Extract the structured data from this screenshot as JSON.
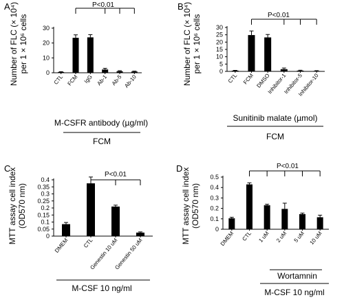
{
  "chart_data": [
    {
      "type": "bar",
      "panel": "A",
      "ylabel": [
        "Number of FLC (× 10⁴)",
        "per 1 × 10⁶ cells"
      ],
      "ylim": [
        0,
        30
      ],
      "ticks": [
        0,
        10,
        20,
        30
      ],
      "categories": [
        "CTL",
        "FCM",
        "IgG",
        "Ab-1",
        "Ab-5",
        "Ab-10"
      ],
      "values": [
        0.5,
        23.5,
        23.8,
        2.2,
        1.0,
        0.8
      ],
      "errors": [
        0.2,
        2.0,
        1.8,
        0.8,
        0.4,
        0.3
      ],
      "significance": {
        "label": "P<0.01",
        "from": 1,
        "to": [
          3,
          4,
          5
        ]
      },
      "annotations": [
        "M-CSFR antibody (µg/ml)",
        "FCM"
      ],
      "grid": false
    },
    {
      "type": "bar",
      "panel": "B",
      "ylabel": [
        "Number of FLC (× 10⁴)",
        "per 1 × 10⁶ cells"
      ],
      "ylim": [
        0,
        30
      ],
      "ticks": [
        0,
        5,
        10,
        15,
        20,
        25,
        30
      ],
      "categories": [
        "CTL",
        "FCM",
        "DMSO",
        "Inhibitor-1",
        "Inhibitor-5",
        "Inhibitor-10"
      ],
      "values": [
        0.5,
        24.8,
        23.2,
        1.5,
        0.5,
        0.3
      ],
      "errors": [
        0.2,
        2.8,
        2.0,
        0.8,
        0.3,
        0.2
      ],
      "significance": {
        "label": "P<0.01",
        "from": 1,
        "to": [
          3,
          4,
          5
        ]
      },
      "annotations": [
        "Sunitinib malate (µmol)",
        "FCM"
      ],
      "grid": false
    },
    {
      "type": "bar",
      "panel": "C",
      "ylabel": [
        "MTT assay cell index",
        "(OD570 nm)"
      ],
      "ylim": [
        0,
        0.4
      ],
      "ticks": [
        "0",
        "0.05",
        "0.1",
        "0.15",
        "0.2",
        "0.25",
        "0.3",
        "0.35",
        "0.4"
      ],
      "categories": [
        "DMEM",
        "CTL",
        "Genestin 10 uM",
        "Genestin 50 uM"
      ],
      "values": [
        0.085,
        0.375,
        0.21,
        0.025
      ],
      "errors": [
        0.012,
        0.045,
        0.01,
        0.005
      ],
      "significance": {
        "label": "P<0.01",
        "from": 1,
        "to": [
          2,
          3
        ]
      },
      "annotations": [
        "M-CSF 10 ng/ml"
      ],
      "grid": false
    },
    {
      "type": "bar",
      "panel": "D",
      "ylabel": [
        "MTT assay cell index",
        "(OD570 nm)"
      ],
      "ylim": [
        0,
        0.5
      ],
      "ticks": [
        "0",
        "0.1",
        "0.2",
        "0.3",
        "0.4",
        "0.5"
      ],
      "categories": [
        "DMEM",
        "CTL",
        "1 uM",
        "2 uM",
        "5 uM",
        "10 uM"
      ],
      "values": [
        0.105,
        0.43,
        0.23,
        0.195,
        0.145,
        0.115
      ],
      "errors": [
        0.01,
        0.015,
        0.01,
        0.055,
        0.01,
        0.02
      ],
      "significance": {
        "label": "P<0.01",
        "from": 1,
        "to": [
          2,
          3,
          4,
          5
        ]
      },
      "annotations": [
        "Wortamnin",
        "M-CSF 10 ng/ml"
      ],
      "grid": false
    }
  ]
}
